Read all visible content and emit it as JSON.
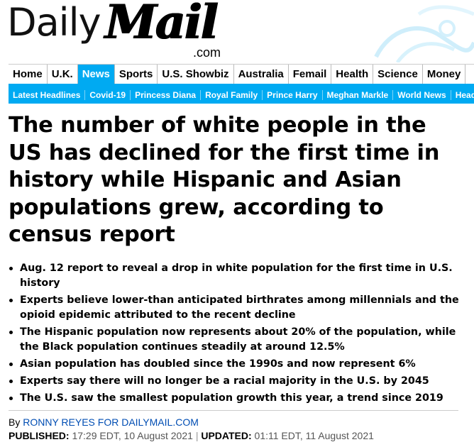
{
  "masthead": {
    "logo_daily": "Daily",
    "logo_mail": "Mail",
    "logo_com": ".com"
  },
  "nav_primary": [
    "Home",
    "U.K.",
    "News",
    "Sports",
    "U.S. Showbiz",
    "Australia",
    "Femail",
    "Health",
    "Science",
    "Money"
  ],
  "nav_primary_active": "News",
  "nav_secondary": [
    "Latest Headlines",
    "Covid-19",
    "Princess Diana",
    "Royal Family",
    "Prince Harry",
    "Meghan Markle",
    "World News",
    "Head"
  ],
  "article": {
    "headline": "The number of white people in the US has declined for the first time in history while Hispanic and Asian populations grew, according to census report",
    "bullets": [
      "Aug. 12 report to reveal a drop in white population for the first time in U.S. history",
      "Experts believe lower-than anticipated birthrates among millennials and the opioid epidemic attributed to the recent decline",
      "The Hispanic population now represents about 20% of the population, while the Black population continues steadily at around 12.5%",
      "Asian population has doubled since the 1990s and now represent 6%",
      "Experts say there will no longer be a racial majority in the U.S. by 2045",
      "The U.S. saw the smallest population growth this year, a trend since 2019"
    ],
    "byline_prefix": "By",
    "byline_author": "RONNY REYES FOR DAILYMAIL.COM",
    "published_label": "PUBLISHED:",
    "published_value": "17:29 EDT, 10 August 2021",
    "updated_label": "UPDATED:",
    "updated_value": "01:11 EDT, 11 August 2021",
    "date_separator": "|"
  },
  "colors": {
    "accent": "#00aaf2",
    "link": "#004db3"
  }
}
